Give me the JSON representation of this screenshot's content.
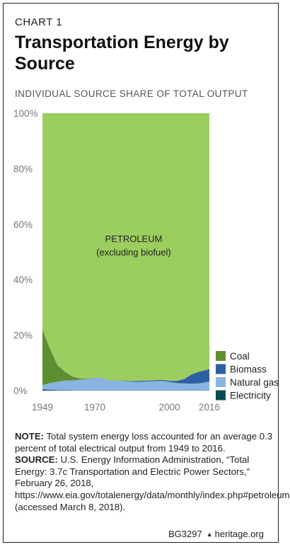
{
  "header": {
    "eyebrow": "CHART 1",
    "title": "Transportation Energy by Source",
    "subtitle": "INDIVIDUAL SOURCE SHARE OF TOTAL OUTPUT"
  },
  "chart_data": {
    "type": "area",
    "title": "Transportation Energy by Source",
    "subtitle": "INDIVIDUAL SOURCE SHARE OF TOTAL OUTPUT",
    "stacked": true,
    "x": [
      1949,
      1952,
      1955,
      1958,
      1961,
      1964,
      1967,
      1970,
      1973,
      1976,
      1979,
      1982,
      1985,
      1988,
      1991,
      1994,
      1997,
      2000,
      2003,
      2006,
      2009,
      2012,
      2015,
      2016
    ],
    "x_ticks": [
      "1949",
      "1970",
      "2000",
      "2016"
    ],
    "y_ticks": [
      "0%",
      "20%",
      "40%",
      "60%",
      "80%",
      "100%"
    ],
    "ylim": [
      0,
      100
    ],
    "grid": false,
    "legend_position": "right",
    "series": [
      {
        "name": "Electricity",
        "color": "#0d4a52",
        "values": [
          0.4,
          0.3,
          0.2,
          0.2,
          0.1,
          0.1,
          0.1,
          0.1,
          0.1,
          0.1,
          0.1,
          0.1,
          0.1,
          0.1,
          0.1,
          0.1,
          0.1,
          0.1,
          0.1,
          0.1,
          0.1,
          0.1,
          0.1,
          0.1
        ]
      },
      {
        "name": "Natural gas",
        "color": "#8ab4e0",
        "values": [
          1.6,
          2.4,
          3.0,
          3.4,
          3.6,
          3.8,
          4.1,
          4.5,
          4.4,
          3.5,
          3.7,
          3.3,
          3.0,
          3.0,
          3.2,
          3.3,
          3.4,
          3.0,
          2.6,
          2.5,
          2.4,
          2.5,
          3.0,
          3.0
        ]
      },
      {
        "name": "Biomass",
        "color": "#2d5fa3",
        "values": [
          0,
          0,
          0,
          0,
          0,
          0,
          0,
          0,
          0,
          0,
          0,
          0.1,
          0.3,
          0.4,
          0.3,
          0.3,
          0.4,
          0.4,
          0.8,
          1.6,
          3.4,
          4.2,
          4.4,
          4.7
        ]
      },
      {
        "name": "Coal",
        "color": "#5e8e32",
        "values": [
          20.0,
          12.5,
          6.0,
          3.2,
          1.4,
          0.5,
          0.2,
          0.1,
          0.05,
          0.05,
          0.05,
          0.05,
          0.05,
          0.05,
          0.05,
          0.05,
          0.05,
          0.05,
          0.05,
          0.05,
          0.05,
          0.05,
          0.05,
          0.05
        ]
      },
      {
        "name": "PETROLEUM (excluding biofuel)",
        "color": "#9ccd5f",
        "values": [
          78.0,
          84.8,
          90.8,
          93.2,
          94.9,
          95.6,
          95.6,
          95.3,
          95.45,
          96.35,
          96.15,
          96.45,
          96.55,
          96.45,
          96.35,
          96.25,
          96.05,
          96.45,
          96.45,
          95.75,
          94.05,
          93.15,
          92.45,
          92.15
        ]
      }
    ],
    "annotation": {
      "line1": "PETROLEUM",
      "line2": "(excluding biofuel)"
    },
    "legend": [
      {
        "label": "Coal",
        "color": "#5e8e32"
      },
      {
        "label": "Biomass",
        "color": "#2d5fa3"
      },
      {
        "label": "Natural gas",
        "color": "#8ab4e0"
      },
      {
        "label": "Electricity",
        "color": "#0d4a52"
      }
    ]
  },
  "notes": {
    "note_label": "NOTE:",
    "note_text": " Total system energy loss accounted for an average 0.3 percent of total electrical output from 1949 to 2016.",
    "source_label": "SOURCE:",
    "source_text": " U.S. Energy Information Administration, “Total Energy: 3.7c Transportation and Electric Power Sectors,” February 26, 2018, https://www.eia.gov/totalenergy/data/monthly/index.php#petroleum (accessed March 8, 2018)."
  },
  "footer": {
    "code": "BG3297",
    "site": "heritage.org",
    "separator": "▲"
  }
}
